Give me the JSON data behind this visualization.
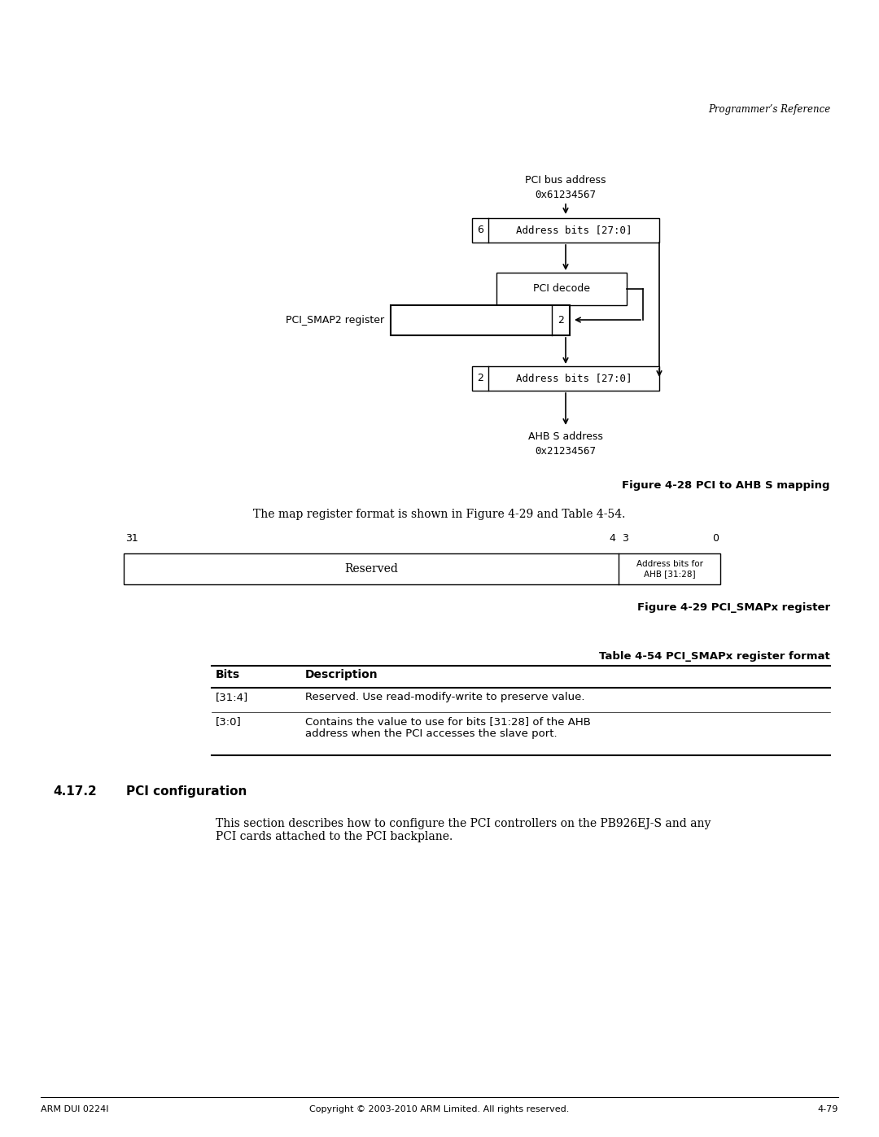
{
  "page_width": 10.8,
  "page_height": 13.97,
  "bg_color": "#ffffff",
  "header_italic": "Programmer’s Reference",
  "diagram": {
    "pci_bus_label": "PCI bus address",
    "pci_bus_addr": "0x61234567",
    "ahb_label": "AHB S address",
    "ahb_addr": "0x21234567",
    "pci_decode_label": "PCI decode",
    "smap2_label": "PCI_SMAP2 register",
    "box1_num": "6",
    "box1_text": "Address bits [27:0]",
    "box2_num": "2",
    "box2_text": "Address bits [27:0]",
    "smap_num": "2"
  },
  "fig28_caption": "Figure 4-28 PCI to AHB S mapping",
  "body_text": "The map register format is shown in Figure 4-29 and Table 4-54.",
  "reg_label_31": "31",
  "reg_label_4": "4",
  "reg_label_3": "3",
  "reg_label_0": "0",
  "reg_reserved": "Reserved",
  "reg_addr_bits": "Address bits for\nAHB [31:28]",
  "fig29_caption": "Figure 4-29 PCI_SMAPx register",
  "table_title": "Table 4-54 PCI_SMAPx register format",
  "table_col1": "Bits",
  "table_col2": "Description",
  "table_row1_bits": "[31:4]",
  "table_row1_desc": "Reserved. Use read-modify-write to preserve value.",
  "table_row2_bits": "[3:0]",
  "table_row2_desc": "Contains the value to use for bits [31:28] of the AHB\naddress when the PCI accesses the slave port.",
  "section_num": "4.17.2",
  "section_heading": "PCI configuration",
  "section_body": "This section describes how to configure the PCI controllers on the PB926EJ-S and any\nPCI cards attached to the PCI backplane.",
  "footer_left": "ARM DUI 0224I",
  "footer_center": "Copyright © 2003-2010 ARM Limited. All rights reserved.",
  "footer_right": "4-79"
}
